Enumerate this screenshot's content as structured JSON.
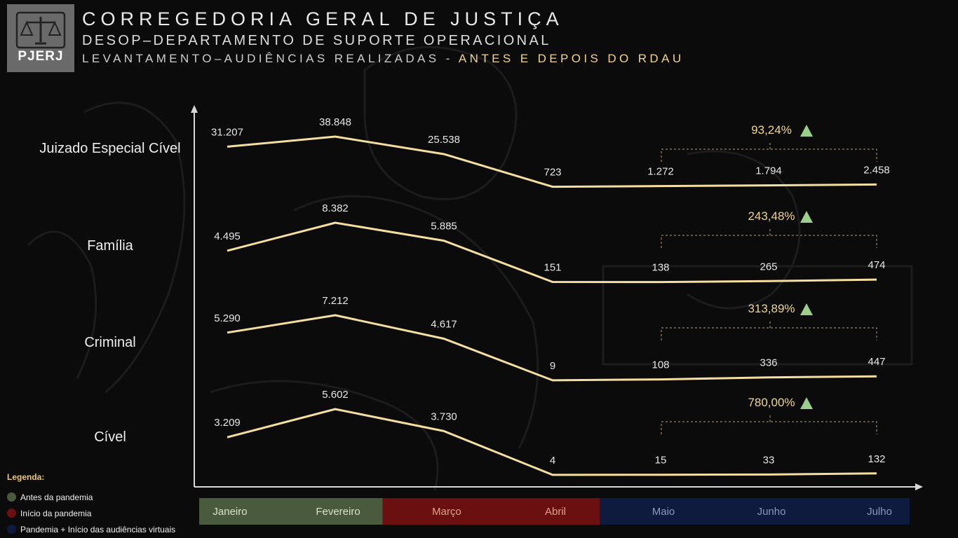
{
  "header": {
    "logo_text": "PJERJ",
    "title": "CORREGEDORIA GERAL DE JUSTIÇA",
    "subtitle": "DESOP–DEPARTAMENTO DE SUPORTE OPERACIONAL",
    "line3_prefix": "LEVANTAMENTO–AUDIÊNCIAS REALIZADAS - ",
    "line3_highlight": "ANTES E DEPOIS DO RDAU"
  },
  "legend": {
    "title": "Legenda:",
    "items": [
      {
        "label": "Antes da pandemia",
        "color": "#4a5a3c"
      },
      {
        "label": "Início da pandemia",
        "color": "#6a1010"
      },
      {
        "label": "Pandemia + Início das audiências virtuais",
        "color": "#0e1a3e"
      }
    ]
  },
  "chart_data": {
    "type": "line",
    "categories": [
      "Janeiro",
      "Fevereiro",
      "Março",
      "Abril",
      "Maio",
      "Junho",
      "Julho"
    ],
    "category_phases": [
      0,
      0,
      1,
      1,
      2,
      2,
      2
    ],
    "phase_colors": [
      "#4a5a3c",
      "#6a1010",
      "#0e1a3e"
    ],
    "phase_text_colors": [
      "#d8e2c4",
      "#e0a088",
      "#8a98c0"
    ],
    "line_color": "#f5dfa0",
    "series": [
      {
        "name": "Juizado Especial Cível",
        "values": [
          31207,
          38848,
          25538,
          723,
          1272,
          1794,
          2458
        ],
        "labels": [
          "31.207",
          "38.848",
          "25.538",
          "723",
          "1.272",
          "1.794",
          "2.458"
        ],
        "growth": "93,24%"
      },
      {
        "name": "Família",
        "values": [
          4495,
          8382,
          5885,
          151,
          138,
          265,
          474
        ],
        "labels": [
          "4.495",
          "8.382",
          "5.885",
          "151",
          "138",
          "265",
          "474"
        ],
        "growth": "243,48%"
      },
      {
        "name": "Criminal",
        "values": [
          5290,
          7212,
          4617,
          9,
          108,
          336,
          447
        ],
        "labels": [
          "5.290",
          "7.212",
          "4.617",
          "9",
          "108",
          "336",
          "447"
        ],
        "growth": "313,89%"
      },
      {
        "name": "Cível",
        "values": [
          3209,
          5602,
          3730,
          4,
          15,
          33,
          132
        ],
        "labels": [
          "3.209",
          "5.602",
          "3.730",
          "4",
          "15",
          "33",
          "132"
        ],
        "growth": "780,00%"
      }
    ],
    "growth_arrow_color": "#9ccf8c"
  }
}
